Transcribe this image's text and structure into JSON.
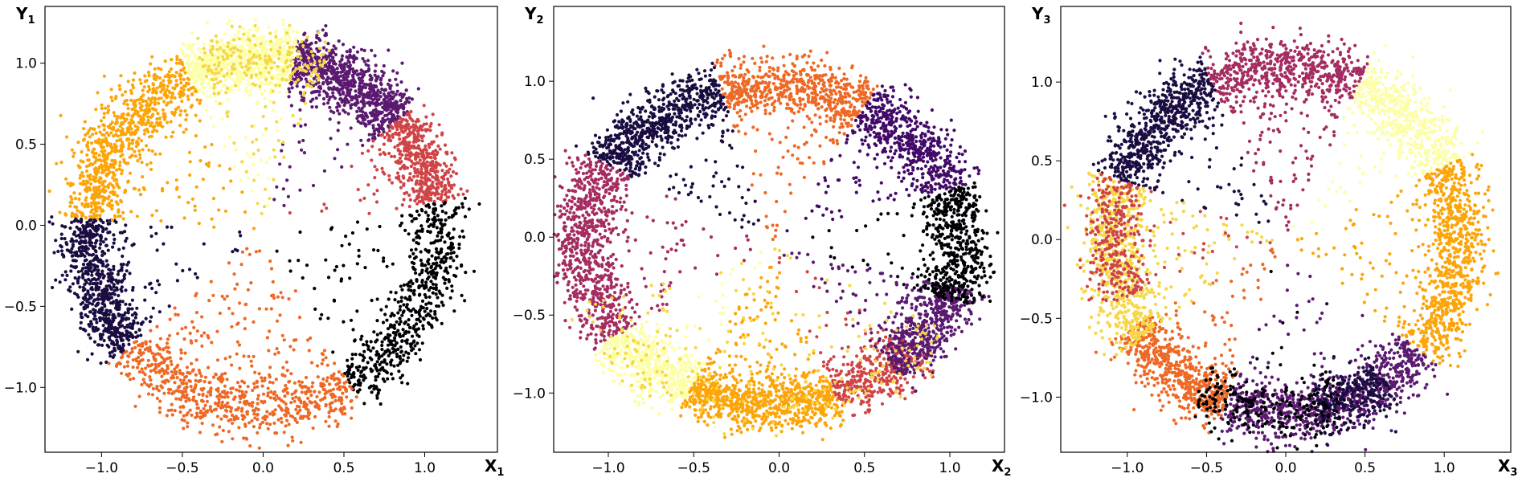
{
  "chart_data": [
    {
      "type": "scatter",
      "title": "",
      "xlabel": "X",
      "xlabel_sub": "1",
      "ylabel": "Y",
      "ylabel_sub": "1",
      "xlim": [
        -1.35,
        1.45
      ],
      "ylim": [
        -1.4,
        1.35
      ],
      "xticks": [
        -1.0,
        -0.5,
        0.0,
        0.5,
        1.0
      ],
      "xtick_labels": [
        "−1.0",
        "−0.5",
        "0.0",
        "0.5",
        "1.0"
      ],
      "yticks": [
        -1.0,
        -0.5,
        0.0,
        0.5,
        1.0
      ],
      "ytick_labels": [
        "−1.0",
        "−0.5",
        "0.0",
        "0.5",
        "1.0"
      ],
      "grid": false,
      "colormap": "inferno",
      "seed": 11,
      "ring": {
        "center": [
          0.0,
          -0.05
        ],
        "rx": 1.08,
        "ry": 1.08,
        "spread": 0.085
      },
      "segments": [
        {
          "angle_from": 40,
          "angle_to": 80,
          "color": "#5b1a70",
          "count": 900,
          "interior": 0.04
        },
        {
          "angle_from": 10,
          "angle_to": 40,
          "color": "#cf4446",
          "count": 500,
          "interior": 0.04
        },
        {
          "angle_from": -60,
          "angle_to": 10,
          "color": "#000004",
          "count": 650,
          "interior": 0.1
        },
        {
          "angle_from": -140,
          "angle_to": -60,
          "color": "#ed6925",
          "count": 850,
          "interior": 0.15
        },
        {
          "angle_from": -185,
          "angle_to": -140,
          "color": "#1b0c41",
          "count": 750,
          "interior": 0.06
        },
        {
          "angle_from": 115,
          "angle_to": 175,
          "color": "#fca50a",
          "count": 850,
          "interior": 0.1
        },
        {
          "angle_from": 80,
          "angle_to": 115,
          "color": "#fcffa4",
          "count": 700,
          "interior": 0.04
        },
        {
          "angle_from": 70,
          "angle_to": 110,
          "color": "#f6d746",
          "count": 250,
          "interior": 0.2
        }
      ]
    },
    {
      "type": "scatter",
      "title": "",
      "xlabel": "X",
      "xlabel_sub": "2",
      "ylabel": "Y",
      "ylabel_sub": "2",
      "xlim": [
        -1.32,
        1.32
      ],
      "ylim": [
        -1.38,
        1.48
      ],
      "xticks": [
        -1.0,
        -0.5,
        0.0,
        0.5,
        1.0
      ],
      "xtick_labels": [
        "−1.0",
        "−0.5",
        "0.0",
        "0.5",
        "1.0"
      ],
      "yticks": [
        -1.0,
        -0.5,
        0.0,
        0.5,
        1.0
      ],
      "ytick_labels": [
        "−1.0",
        "−0.5",
        "0.0",
        "0.5",
        "1.0"
      ],
      "grid": false,
      "colormap": "inferno",
      "seed": 23,
      "ring": {
        "center": [
          -0.05,
          -0.05
        ],
        "rx": 1.1,
        "ry": 1.02,
        "spread": 0.085
      },
      "segments": [
        {
          "angle_from": 60,
          "angle_to": 105,
          "color": "#ed6925",
          "count": 700,
          "interior": 0.12
        },
        {
          "angle_from": 105,
          "angle_to": 150,
          "color": "#1b0c41",
          "count": 750,
          "interior": 0.1
        },
        {
          "angle_from": 150,
          "angle_to": 215,
          "color": "#a52c60",
          "count": 850,
          "interior": 0.1
        },
        {
          "angle_from": 215,
          "angle_to": 245,
          "color": "#fcffa4",
          "count": 500,
          "interior": 0.04
        },
        {
          "angle_from": 245,
          "angle_to": 290,
          "color": "#fca50a",
          "count": 900,
          "interior": 0.1
        },
        {
          "angle_from": 290,
          "angle_to": 320,
          "color": "#cf4446",
          "count": 400,
          "interior": 0.08
        },
        {
          "angle_from": 310,
          "angle_to": 345,
          "color": "#5b1a70",
          "count": 600,
          "interior": 0.1
        },
        {
          "angle_from": -20,
          "angle_to": 20,
          "color": "#000004",
          "count": 550,
          "interior": 0.05
        },
        {
          "angle_from": 20,
          "angle_to": 60,
          "color": "#420a68",
          "count": 600,
          "interior": 0.1
        },
        {
          "angle_from": 200,
          "angle_to": 330,
          "color": "#f6d746",
          "count": 250,
          "interior": 0.25
        }
      ]
    },
    {
      "type": "scatter",
      "title": "",
      "xlabel": "X",
      "xlabel_sub": "3",
      "ylabel": "Y",
      "ylabel_sub": "3",
      "xlim": [
        -1.42,
        1.42
      ],
      "ylim": [
        -1.35,
        1.48
      ],
      "xticks": [
        -1.0,
        -0.5,
        0.0,
        0.5,
        1.0
      ],
      "xtick_labels": [
        "−1.0",
        "−0.5",
        "0.0",
        "0.5",
        "1.0"
      ],
      "yticks": [
        -1.0,
        -0.5,
        0.0,
        0.5,
        1.0
      ],
      "ytick_labels": [
        "−1.0",
        "−0.5",
        "0.0",
        "0.5",
        "1.0"
      ],
      "grid": false,
      "colormap": "inferno",
      "seed": 37,
      "ring": {
        "center": [
          0.0,
          0.0
        ],
        "rx": 1.1,
        "ry": 1.1,
        "spread": 0.085
      },
      "segments": [
        {
          "angle_from": 115,
          "angle_to": 160,
          "color": "#1b0c41",
          "count": 700,
          "interior": 0.06
        },
        {
          "angle_from": 65,
          "angle_to": 115,
          "color": "#a52c60",
          "count": 700,
          "interior": 0.15
        },
        {
          "angle_from": 25,
          "angle_to": 65,
          "color": "#fcffa4",
          "count": 550,
          "interior": 0.1
        },
        {
          "angle_from": -40,
          "angle_to": 25,
          "color": "#fca50a",
          "count": 850,
          "interior": 0.1
        },
        {
          "angle_from": -110,
          "angle_to": -40,
          "color": "#5b1a70",
          "count": 900,
          "interior": 0.05
        },
        {
          "angle_from": -80,
          "angle_to": -55,
          "color": "#1b0c41",
          "count": 250,
          "interior": 0.02
        },
        {
          "angle_from": -150,
          "angle_to": -110,
          "color": "#ed6925",
          "count": 650,
          "interior": 0.08
        },
        {
          "angle_from": 160,
          "angle_to": 215,
          "color": "#f6d746",
          "count": 700,
          "interior": 0.12
        },
        {
          "angle_from": 160,
          "angle_to": 200,
          "color": "#cf4446",
          "count": 350,
          "interior": 0.08
        },
        {
          "angle_from": -120,
          "angle_to": -70,
          "color": "#000004",
          "count": 250,
          "interior": 0.05
        }
      ]
    }
  ]
}
